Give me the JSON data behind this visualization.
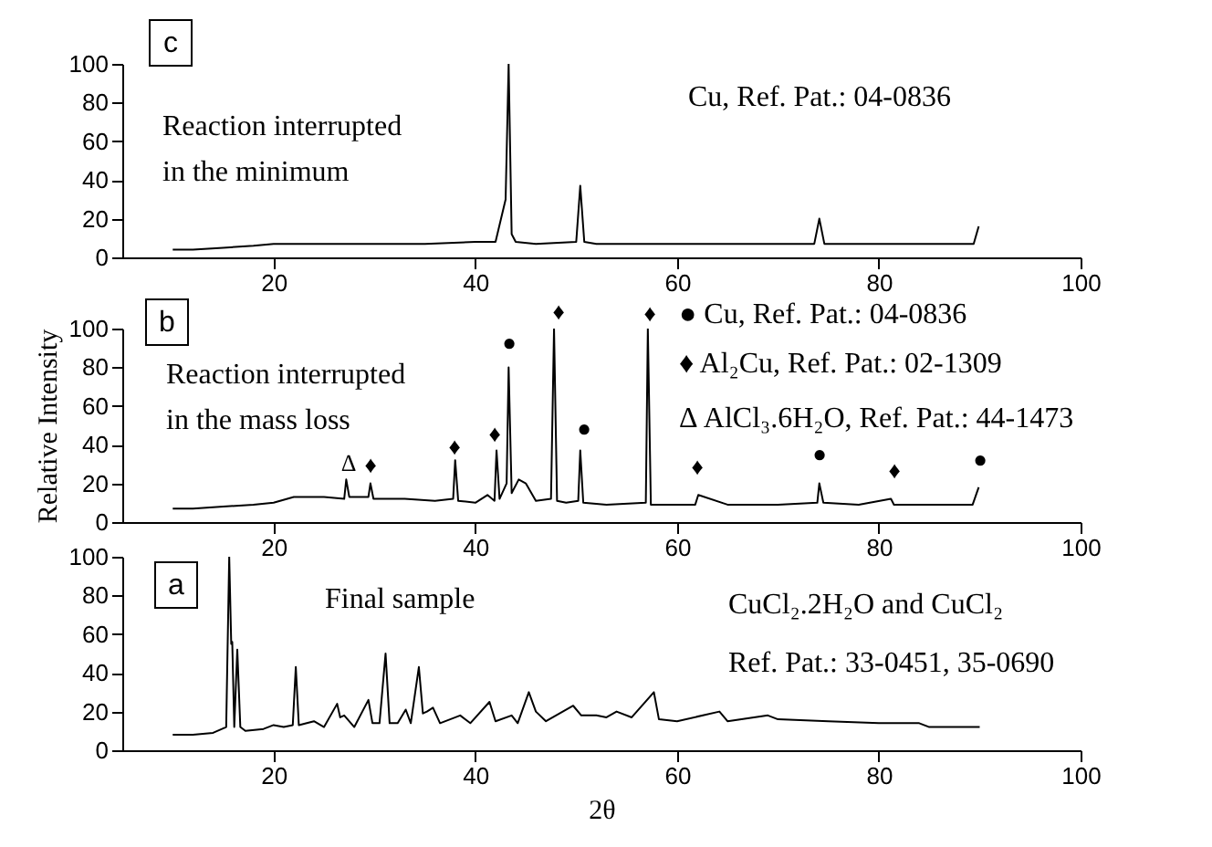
{
  "chart_data": [
    {
      "type": "line",
      "color": "#000000",
      "xlim": [
        5,
        100
      ],
      "xticks": [
        20,
        40,
        60,
        80,
        100
      ],
      "ylim": [
        0,
        100
      ],
      "yticks": [
        0,
        20,
        40,
        60,
        80,
        100
      ],
      "grid": false,
      "x": [
        10,
        12,
        15,
        18,
        20,
        22,
        25,
        30,
        35,
        40,
        42,
        43.0,
        43.3,
        43.6,
        44,
        46,
        50.0,
        50.4,
        50.8,
        52,
        55,
        60,
        65,
        70,
        73.6,
        74.1,
        74.6,
        78,
        82,
        86,
        89.4,
        89.9
      ],
      "values": [
        4,
        4,
        5,
        6,
        7,
        7,
        7,
        7,
        7,
        8,
        8,
        30,
        100,
        12,
        8,
        7,
        8,
        37,
        8,
        7,
        7,
        7,
        7,
        7,
        7,
        20,
        7,
        7,
        7,
        7,
        7,
        16
      ],
      "annotations": [
        "c",
        "Reaction interrupted\nin the minimum",
        "Cu, Ref. Pat.: 04-0836"
      ]
    },
    {
      "type": "line",
      "color": "#000000",
      "xlim": [
        5,
        100
      ],
      "xticks": [
        20,
        40,
        60,
        80,
        100
      ],
      "ylim": [
        0,
        100
      ],
      "yticks": [
        0,
        20,
        40,
        60,
        80,
        100
      ],
      "grid": false,
      "ylabel": "Relative Intensity",
      "x": [
        10,
        12,
        15,
        18,
        20,
        22,
        25,
        27.0,
        27.2,
        27.5,
        29.4,
        29.6,
        29.9,
        33,
        36,
        37.8,
        38.0,
        38.3,
        40,
        41.2,
        41.9,
        42.1,
        42.4,
        43.1,
        43.3,
        43.6,
        44.3,
        45.0,
        46,
        47.5,
        47.8,
        48.1,
        49,
        50.2,
        50.4,
        50.7,
        53,
        56.9,
        57.1,
        57.4,
        60,
        61.8,
        62.1,
        65,
        70,
        73.9,
        74.1,
        74.5,
        78,
        81.2,
        81.5,
        85,
        89.3,
        89.9
      ],
      "values": [
        7,
        7,
        8,
        9,
        10,
        13,
        13,
        12,
        22,
        13,
        13,
        20,
        12,
        12,
        11,
        12,
        32,
        11,
        10,
        14,
        11,
        37,
        12,
        20,
        80,
        15,
        22,
        20,
        11,
        12,
        100,
        11,
        10,
        11,
        37,
        10,
        9,
        10,
        100,
        9,
        9,
        9,
        14,
        9,
        9,
        10,
        20,
        10,
        9,
        12,
        9,
        9,
        9,
        18
      ],
      "annotations": [
        "b",
        "Reaction interrupted\nin the mass loss",
        "●  Cu,  Ref. Pat.: 04-0836",
        "♦  Al₂Cu, Ref. Pat.: 02-1309",
        "Δ  AlCl₃.6H₂O, Ref. Pat.: 44-1473",
        "♦",
        "♦",
        "Δ",
        "♦",
        "♦",
        "♦",
        "●",
        "●",
        "♦",
        "●",
        "♦",
        "●"
      ]
    },
    {
      "type": "line",
      "color": "#000000",
      "xlim": [
        5,
        100
      ],
      "xticks": [
        20,
        40,
        60,
        80,
        100
      ],
      "ylim": [
        0,
        100
      ],
      "yticks": [
        0,
        20,
        40,
        60,
        80,
        100
      ],
      "grid": false,
      "xlabel": "2θ",
      "x": [
        10,
        12,
        14,
        15.3,
        15.6,
        15.8,
        15.9,
        16.1,
        16.4,
        16.7,
        17.2,
        19,
        20,
        21,
        21.9,
        22.2,
        22.5,
        24,
        25,
        26.3,
        26.6,
        27,
        28,
        29.4,
        29.8,
        30.5,
        31.1,
        31.5,
        32.3,
        33.1,
        33.6,
        34.4,
        34.8,
        35.2,
        35.8,
        36.5,
        38.5,
        39.5,
        41.4,
        42,
        43.6,
        44.2,
        45.3,
        46,
        47,
        49.7,
        50.5,
        52,
        53,
        54,
        55.5,
        57.7,
        58.2,
        60,
        64.2,
        65,
        69,
        70,
        75,
        80,
        84,
        85,
        90
      ],
      "values": [
        8,
        8,
        9,
        12,
        100,
        55,
        56,
        12,
        52,
        12,
        10,
        11,
        13,
        12,
        13,
        43,
        13,
        15,
        12,
        24,
        17,
        18,
        12,
        26,
        14,
        14,
        50,
        14,
        14,
        21,
        14,
        43,
        19,
        20,
        22,
        14,
        18,
        14,
        25,
        15,
        18,
        14,
        30,
        20,
        15,
        23,
        18,
        18,
        17,
        20,
        17,
        30,
        16,
        15,
        20,
        15,
        18,
        16,
        15,
        14,
        14,
        12,
        12
      ],
      "annotations": [
        "a",
        "Final sample",
        "CuCl₂.2H₂O and CuCl₂",
        "Ref. Pat.: 33-0451, 35-0690"
      ]
    }
  ]
}
